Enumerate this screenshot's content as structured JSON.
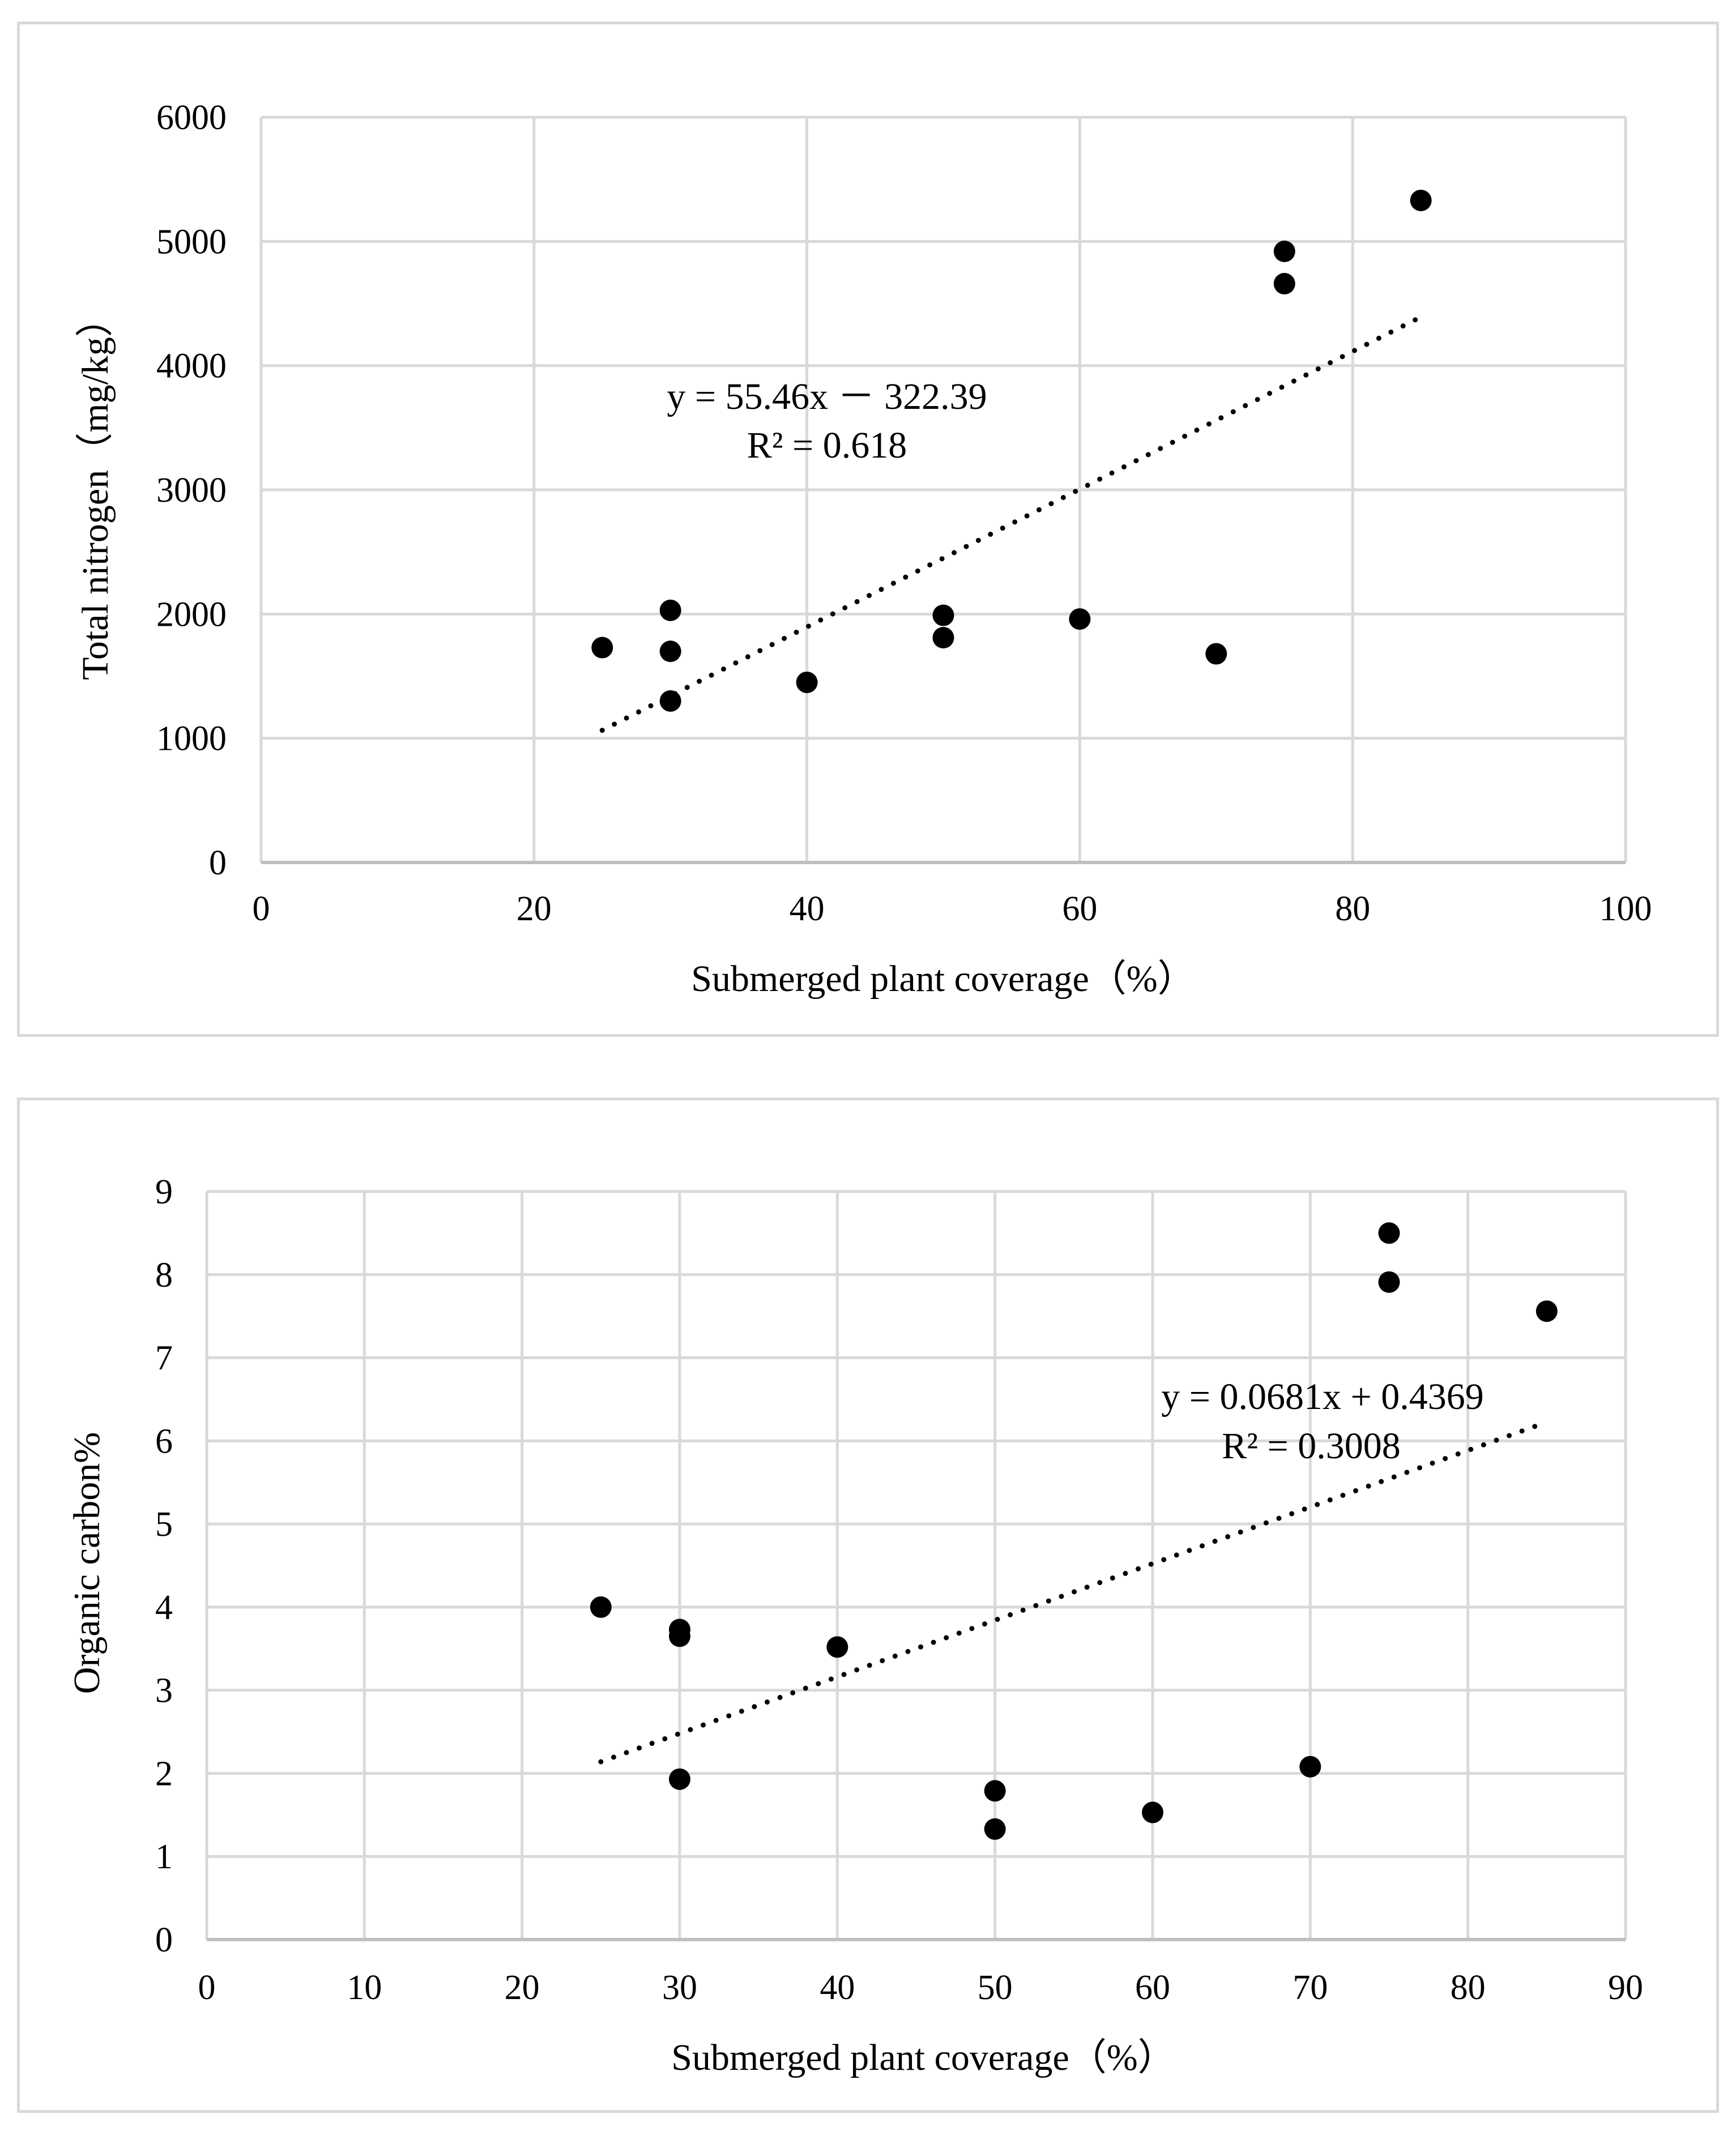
{
  "chart_data": [
    {
      "type": "scatter",
      "xlabel": "Submerged plant coverage（%）",
      "ylabel": "Total nitrogen（mg/kg）",
      "xlim": [
        0,
        100
      ],
      "ylim": [
        0,
        6000
      ],
      "x_ticks": [
        0,
        20,
        40,
        60,
        80,
        100
      ],
      "y_ticks": [
        0,
        1000,
        2000,
        3000,
        4000,
        5000,
        6000
      ],
      "grid": true,
      "series": [
        {
          "name": "points",
          "points": [
            {
              "x": 25,
              "y": 1730
            },
            {
              "x": 30,
              "y": 2030
            },
            {
              "x": 30,
              "y": 1700
            },
            {
              "x": 30,
              "y": 1300
            },
            {
              "x": 40,
              "y": 1450
            },
            {
              "x": 50,
              "y": 1990
            },
            {
              "x": 50,
              "y": 1810
            },
            {
              "x": 60,
              "y": 1960
            },
            {
              "x": 70,
              "y": 1680
            },
            {
              "x": 75,
              "y": 4920
            },
            {
              "x": 75,
              "y": 4660
            },
            {
              "x": 85,
              "y": 5330
            }
          ]
        }
      ],
      "trendline": {
        "slope": 55.46,
        "intercept": -322.39,
        "x_start": 25,
        "x_end": 85,
        "style": "dotted"
      },
      "annotations": {
        "equation": "y = 55.46x － 322.39",
        "r2": "R² = 0.618"
      }
    },
    {
      "type": "scatter",
      "xlabel": "Submerged plant coverage（%）",
      "ylabel": "Organic carbon%",
      "xlim": [
        0,
        90
      ],
      "ylim": [
        0,
        9
      ],
      "x_ticks": [
        0,
        10,
        20,
        30,
        40,
        50,
        60,
        70,
        80,
        90
      ],
      "y_ticks": [
        0,
        1,
        2,
        3,
        4,
        5,
        6,
        7,
        8,
        9
      ],
      "grid": true,
      "series": [
        {
          "name": "points",
          "points": [
            {
              "x": 25,
              "y": 4.0
            },
            {
              "x": 30,
              "y": 3.73
            },
            {
              "x": 30,
              "y": 3.65
            },
            {
              "x": 30,
              "y": 1.93
            },
            {
              "x": 40,
              "y": 3.52
            },
            {
              "x": 50,
              "y": 1.79
            },
            {
              "x": 50,
              "y": 1.33
            },
            {
              "x": 60,
              "y": 1.53
            },
            {
              "x": 70,
              "y": 2.08
            },
            {
              "x": 75,
              "y": 8.5
            },
            {
              "x": 75,
              "y": 7.91
            },
            {
              "x": 85,
              "y": 7.56
            }
          ]
        }
      ],
      "trendline": {
        "slope": 0.0681,
        "intercept": 0.4369,
        "x_start": 25,
        "x_end": 85,
        "style": "dotted"
      },
      "annotations": {
        "equation": "y = 0.0681x + 0.4369",
        "r2": "R² = 0.3008"
      }
    }
  ]
}
